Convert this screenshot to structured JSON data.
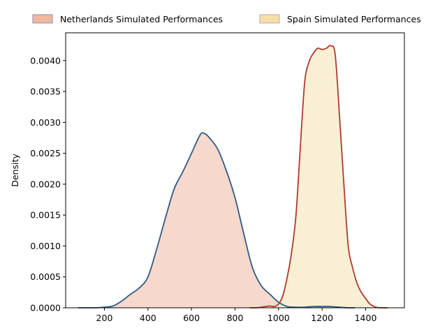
{
  "chart_data": {
    "type": "area",
    "title": "",
    "xlabel": "",
    "ylabel": "Density",
    "xlim": [
      22,
      1578
    ],
    "ylim": [
      0,
      0.00445
    ],
    "xticks": [
      200,
      400,
      600,
      800,
      1000,
      1200,
      1400
    ],
    "xtick_labels": [
      "200",
      "400",
      "600",
      "800",
      "1000",
      "1200",
      "1400"
    ],
    "yticks": [
      0,
      0.0005,
      0.001,
      0.0015,
      0.002,
      0.0025,
      0.003,
      0.0035,
      0.004
    ],
    "ytick_labels": [
      "0.0000",
      "0.0005",
      "0.0010",
      "0.0015",
      "0.0020",
      "0.0025",
      "0.0030",
      "0.0035",
      "0.0040"
    ],
    "grid": false,
    "legend_position": "top (outside, above plot)",
    "series": [
      {
        "name": "Netherlands Simulated Performances",
        "line_color": "#2e5a87",
        "fill_color": "#f6d8cc",
        "legend_patch_color": "#f0b8a0",
        "x": [
          80,
          120,
          160,
          200,
          240,
          280,
          320,
          360,
          400,
          440,
          480,
          520,
          560,
          600,
          640,
          660,
          680,
          720,
          760,
          800,
          840,
          880,
          920,
          960,
          1000,
          1040,
          1080,
          1120,
          1160,
          1200,
          1240,
          1280,
          1320,
          1350
        ],
        "values": [
          0.0,
          0.0,
          0.0,
          1e-05,
          3e-05,
          0.00011,
          0.00022,
          0.00032,
          0.0005,
          0.00095,
          0.00145,
          0.00192,
          0.0022,
          0.0025,
          0.0028,
          0.00282,
          0.00276,
          0.00257,
          0.00222,
          0.00178,
          0.0012,
          0.00065,
          0.00036,
          0.00022,
          9e-05,
          2e-05,
          1e-05,
          1e-05,
          2e-05,
          2e-05,
          2e-05,
          1e-05,
          0.0,
          0.0
        ]
      },
      {
        "name": "Spain Simulated Performances",
        "line_color": "#b03a2e",
        "fill_color": "#f8efd4",
        "legend_patch_color": "#f5dfa8",
        "x": [
          870,
          900,
          940,
          960,
          980,
          1000,
          1020,
          1040,
          1060,
          1080,
          1100,
          1120,
          1140,
          1160,
          1180,
          1200,
          1220,
          1240,
          1260,
          1280,
          1300,
          1320,
          1340,
          1360,
          1380,
          1400,
          1420,
          1440,
          1460,
          1480,
          1500
        ],
        "values": [
          0.0,
          0.0,
          2e-05,
          3e-05,
          2e-05,
          6e-05,
          0.0002,
          0.0005,
          0.0009,
          0.0015,
          0.0026,
          0.00365,
          0.00398,
          0.00412,
          0.0042,
          0.00418,
          0.0042,
          0.00424,
          0.0041,
          0.0031,
          0.002,
          0.001,
          0.00065,
          0.0004,
          0.00025,
          0.00015,
          6e-05,
          2e-05,
          0.0,
          0.0,
          0.0
        ]
      }
    ]
  }
}
